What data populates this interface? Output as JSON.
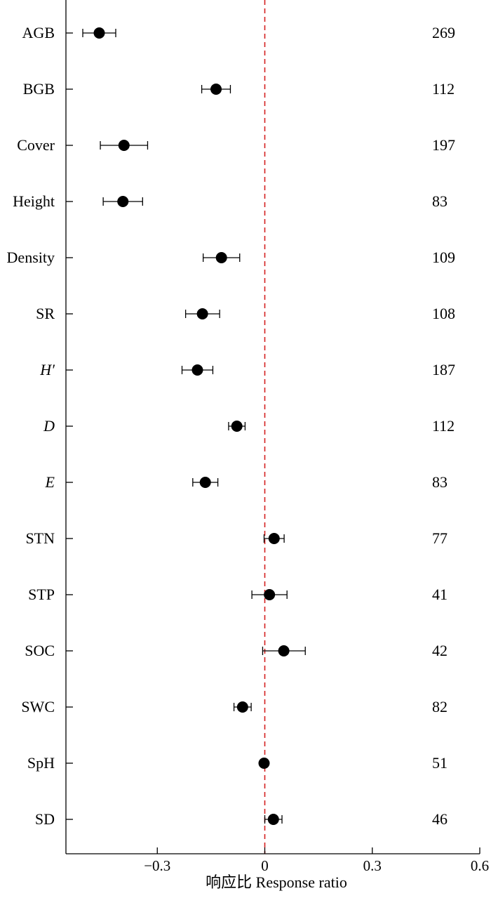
{
  "chart_data": {
    "type": "scatter",
    "xlabel": "响应比 Response ratio",
    "xlim": [
      -0.555,
      0.6
    ],
    "xticks": [
      {
        "value": -0.3,
        "label": "−0.3"
      },
      {
        "value": 0,
        "label": "0"
      },
      {
        "value": 0.3,
        "label": "0.3"
      },
      {
        "value": 0.6,
        "label": "0.6"
      }
    ],
    "reference_line": {
      "x": 0,
      "color": "#d42020",
      "style": "dashed"
    },
    "rows": [
      {
        "label": "AGB",
        "italic": false,
        "value": -0.462,
        "lower": -0.508,
        "upper": -0.416,
        "n": "269"
      },
      {
        "label": "BGB",
        "italic": false,
        "value": -0.136,
        "lower": -0.176,
        "upper": -0.096,
        "n": "112"
      },
      {
        "label": "Cover",
        "italic": false,
        "value": -0.393,
        "lower": -0.459,
        "upper": -0.327,
        "n": "197"
      },
      {
        "label": "Height",
        "italic": false,
        "value": -0.396,
        "lower": -0.451,
        "upper": -0.341,
        "n": "83"
      },
      {
        "label": "Density",
        "italic": false,
        "value": -0.121,
        "lower": -0.172,
        "upper": -0.07,
        "n": "109"
      },
      {
        "label": "SR",
        "italic": false,
        "value": -0.174,
        "lower": -0.221,
        "upper": -0.126,
        "n": "108"
      },
      {
        "label": "H′",
        "italic": true,
        "value": -0.188,
        "lower": -0.231,
        "upper": -0.145,
        "n": "187"
      },
      {
        "label": "D",
        "italic": true,
        "value": -0.078,
        "lower": -0.101,
        "upper": -0.055,
        "n": "112"
      },
      {
        "label": "E",
        "italic": true,
        "value": -0.166,
        "lower": -0.201,
        "upper": -0.131,
        "n": "83"
      },
      {
        "label": "STN",
        "italic": false,
        "value": 0.026,
        "lower": -0.002,
        "upper": 0.054,
        "n": "77"
      },
      {
        "label": "STP",
        "italic": false,
        "value": 0.013,
        "lower": -0.036,
        "upper": 0.062,
        "n": "41"
      },
      {
        "label": "SOC",
        "italic": false,
        "value": 0.053,
        "lower": -0.006,
        "upper": 0.113,
        "n": "42"
      },
      {
        "label": "SWC",
        "italic": false,
        "value": -0.062,
        "lower": -0.086,
        "upper": -0.038,
        "n": "82"
      },
      {
        "label": "SpH",
        "italic": false,
        "value": -0.002,
        "lower": -0.009,
        "upper": 0.005,
        "n": "51"
      },
      {
        "label": "SD",
        "italic": false,
        "value": 0.024,
        "lower": 0.0,
        "upper": 0.048,
        "n": "46"
      }
    ]
  }
}
